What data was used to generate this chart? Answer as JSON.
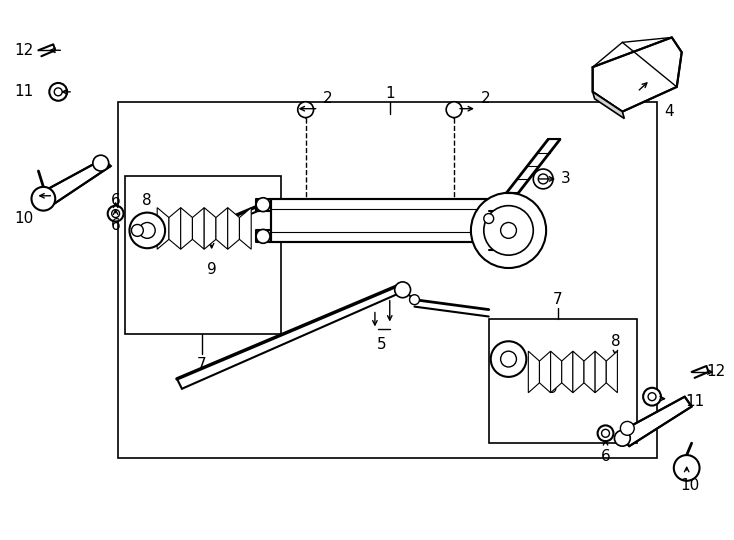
{
  "bg": "#ffffff",
  "lc": "#000000",
  "fig_w": 7.34,
  "fig_h": 5.4,
  "dpi": 100,
  "fs": 11
}
